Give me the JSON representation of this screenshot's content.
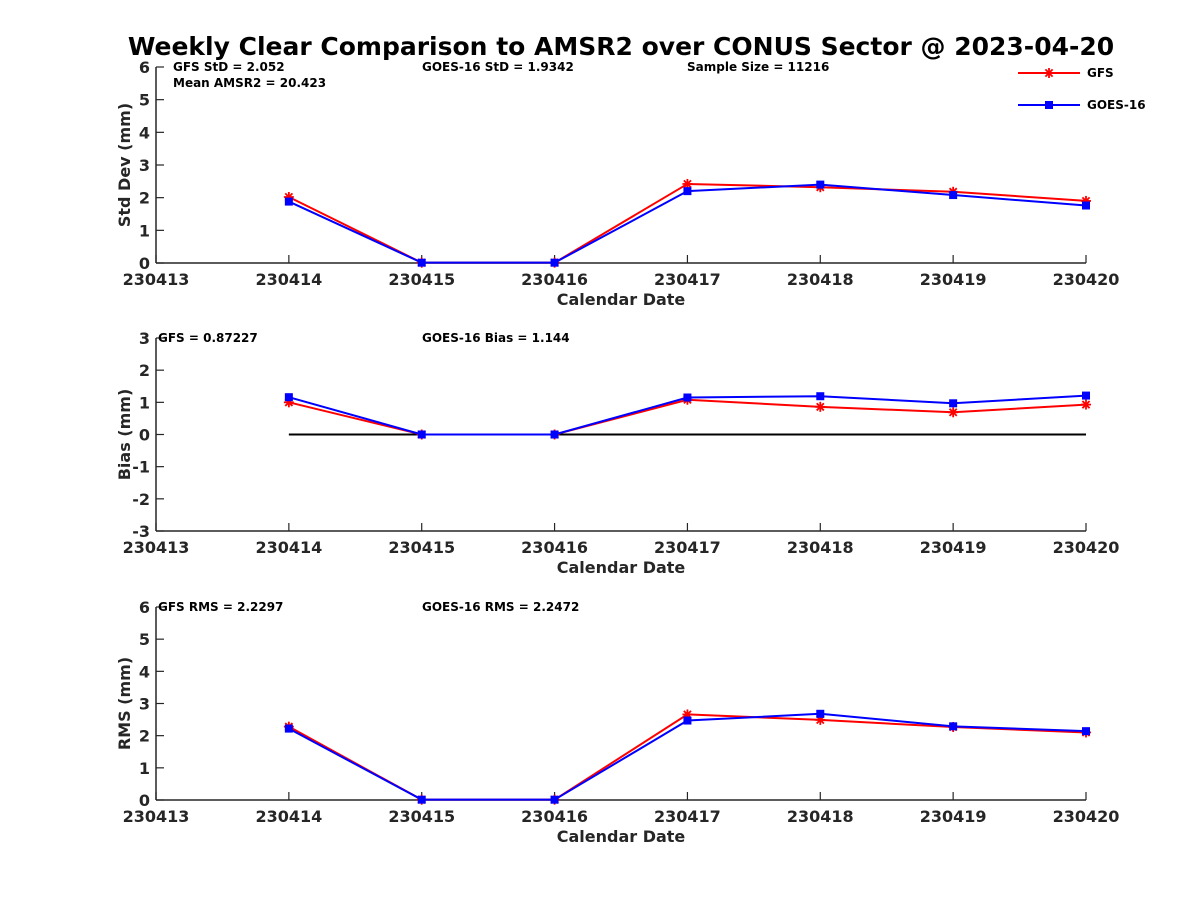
{
  "title": "Weekly Clear Comparison to AMSR2 over CONUS Sector @ 2023-04-20",
  "legend": [
    {
      "label": "GFS",
      "color": "#ff0000",
      "marker": "asterisk"
    },
    {
      "label": "GOES-16",
      "color": "#0000ff",
      "marker": "square"
    }
  ],
  "chart_data": [
    {
      "type": "line",
      "id": "std",
      "xlabel": "Calendar Date",
      "ylabel": "Std Dev (mm)",
      "ylim": [
        0,
        6
      ],
      "yticks": [
        "0",
        "1",
        "2",
        "3",
        "4",
        "5",
        "6"
      ],
      "xticks": [
        "230413",
        "230414",
        "230415",
        "230416",
        "230417",
        "230418",
        "230419",
        "230420"
      ],
      "annotations": [
        {
          "text": "GFS StD = 2.052"
        },
        {
          "text": "Mean AMSR2 = 20.423"
        },
        {
          "text": "GOES-16 StD = 1.9342"
        },
        {
          "text": "Sample Size = 11216"
        }
      ],
      "zero_line": false,
      "series": [
        {
          "name": "GFS",
          "color": "#ff0000",
          "marker": "asterisk",
          "x": [
            1,
            2,
            3,
            4,
            5,
            6,
            7
          ],
          "values": [
            2.02,
            0.01,
            0.01,
            2.42,
            2.32,
            2.18,
            1.9
          ]
        },
        {
          "name": "GOES-16",
          "color": "#0000ff",
          "marker": "square",
          "x": [
            1,
            2,
            3,
            4,
            5,
            6,
            7
          ],
          "values": [
            1.88,
            0.01,
            0.01,
            2.2,
            2.4,
            2.08,
            1.76
          ]
        }
      ]
    },
    {
      "type": "line",
      "id": "bias",
      "xlabel": "Calendar Date",
      "ylabel": "Bias (mm)",
      "ylim": [
        -3,
        3
      ],
      "yticks": [
        "-3",
        "-2",
        "-1",
        "0",
        "1",
        "2",
        "3"
      ],
      "xticks": [
        "230413",
        "230414",
        "230415",
        "230416",
        "230417",
        "230418",
        "230419",
        "230420"
      ],
      "annotations": [
        {
          "text": "GFS = 0.87227"
        },
        {
          "text": "GOES-16 Bias  = 1.144"
        }
      ],
      "zero_line": true,
      "series": [
        {
          "name": "GFS",
          "color": "#ff0000",
          "marker": "asterisk",
          "x": [
            1,
            2,
            3,
            4,
            5,
            6,
            7
          ],
          "values": [
            1.0,
            0.0,
            0.0,
            1.08,
            0.86,
            0.69,
            0.93
          ]
        },
        {
          "name": "GOES-16",
          "color": "#0000ff",
          "marker": "square",
          "x": [
            1,
            2,
            3,
            4,
            5,
            6,
            7
          ],
          "values": [
            1.16,
            0.0,
            0.0,
            1.15,
            1.19,
            0.97,
            1.21
          ]
        }
      ]
    },
    {
      "type": "line",
      "id": "rms",
      "xlabel": "Calendar Date",
      "ylabel": "RMS (mm)",
      "ylim": [
        0,
        6
      ],
      "yticks": [
        "0",
        "1",
        "2",
        "3",
        "4",
        "5",
        "6"
      ],
      "xticks": [
        "230413",
        "230414",
        "230415",
        "230416",
        "230417",
        "230418",
        "230419",
        "230420"
      ],
      "annotations": [
        {
          "text": "GFS RMS = 2.2297"
        },
        {
          "text": "GOES-16 RMS = 2.2472"
        }
      ],
      "zero_line": false,
      "series": [
        {
          "name": "GFS",
          "color": "#ff0000",
          "marker": "asterisk",
          "x": [
            1,
            2,
            3,
            4,
            5,
            6,
            7
          ],
          "values": [
            2.28,
            0.01,
            0.01,
            2.66,
            2.49,
            2.27,
            2.1
          ]
        },
        {
          "name": "GOES-16",
          "color": "#0000ff",
          "marker": "square",
          "x": [
            1,
            2,
            3,
            4,
            5,
            6,
            7
          ],
          "values": [
            2.22,
            0.01,
            0.01,
            2.47,
            2.68,
            2.29,
            2.14
          ]
        }
      ]
    }
  ]
}
